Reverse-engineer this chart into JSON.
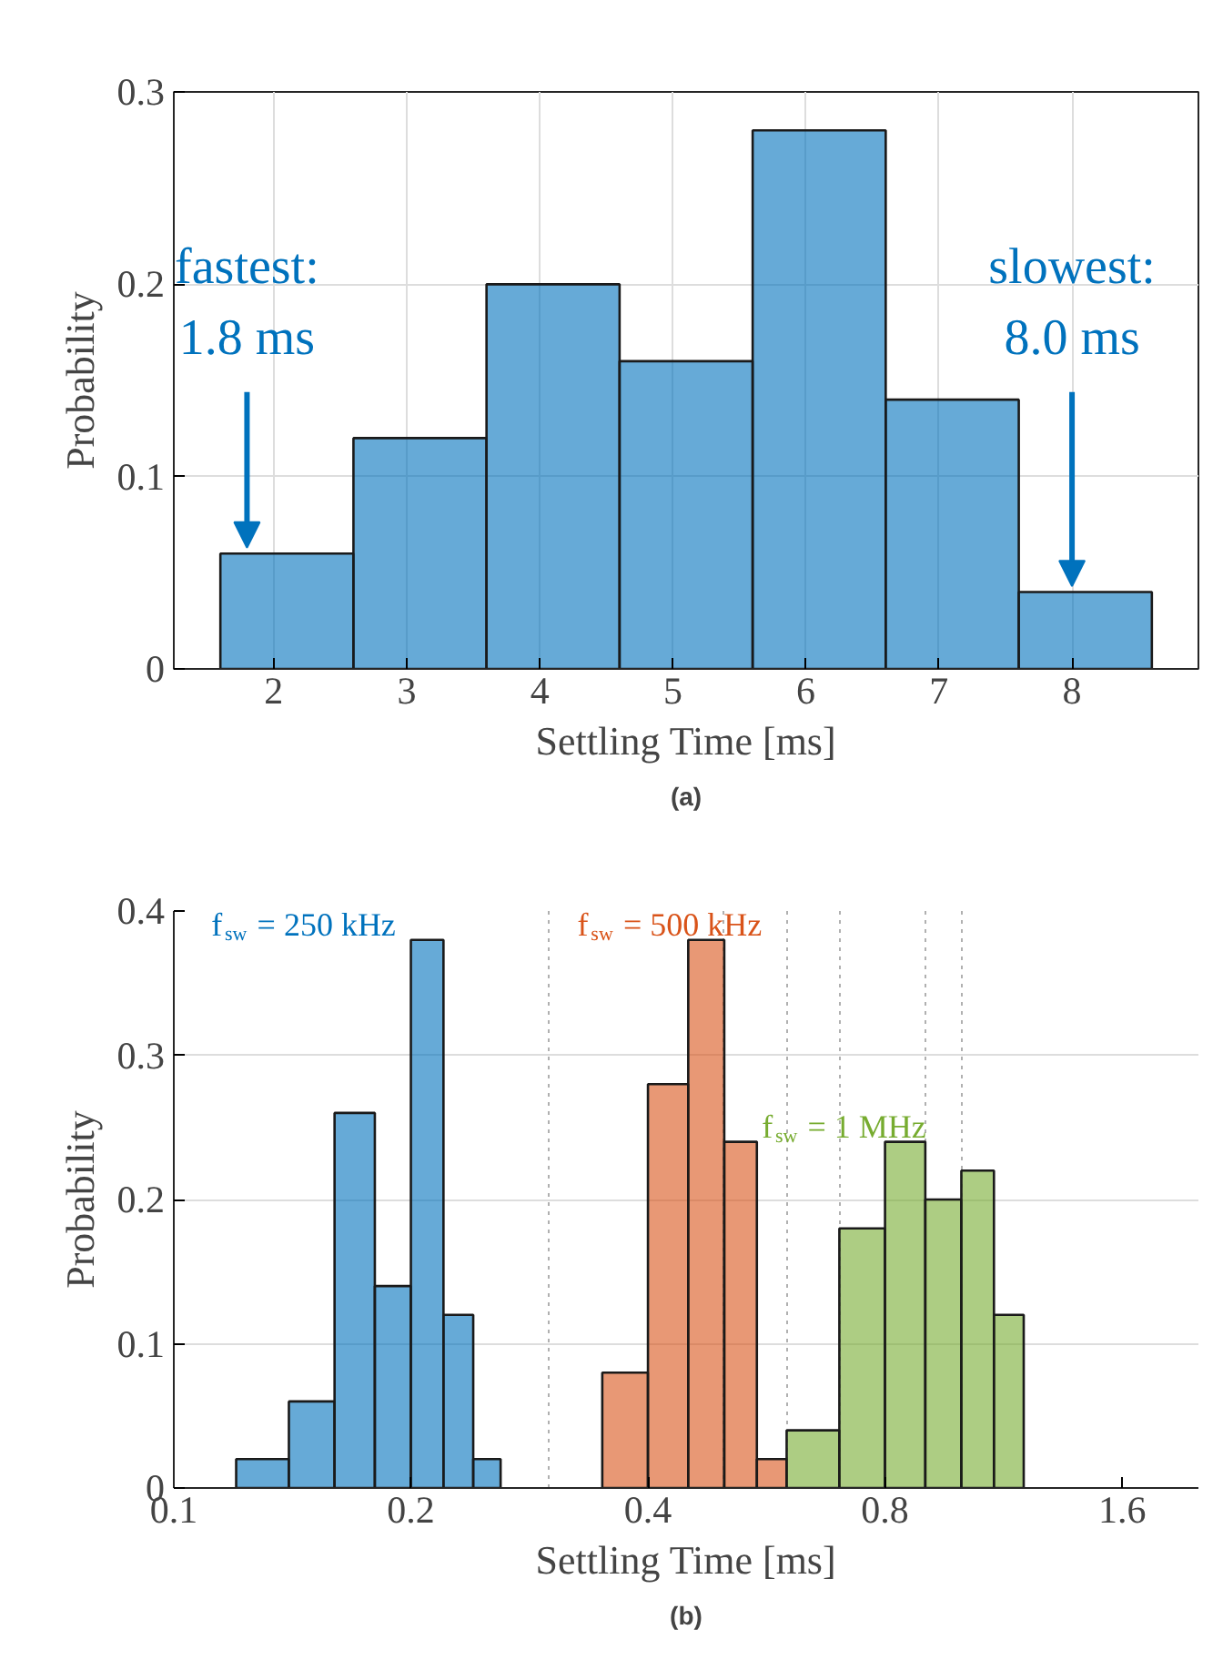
{
  "chart_data": [
    {
      "type": "histogram",
      "title": "(a)",
      "xlabel": "Settling Time [ms]",
      "ylabel": "Probability",
      "color": "#0072bd",
      "bins": [
        1.6,
        2.6,
        3.6,
        4.6,
        5.6,
        6.6,
        7.6,
        8.6
      ],
      "values": [
        0.06,
        0.12,
        0.2,
        0.16,
        0.28,
        0.14,
        0.04
      ],
      "xlim": [
        1.25,
        8.95
      ],
      "ylim": [
        0,
        0.3
      ],
      "xticks": [
        2,
        3,
        4,
        5,
        6,
        7,
        8
      ],
      "yticks": [
        0,
        0.1,
        0.2,
        0.3
      ],
      "grid": true,
      "annotations": [
        {
          "text": "fastest:\n1.8 ms",
          "x": 1.8,
          "y": 0.06
        },
        {
          "text": "slowest:\n8.0 ms",
          "x": 8.0,
          "y": 0.04
        }
      ]
    },
    {
      "type": "histogram",
      "title": "(b)",
      "xlabel": "Settling Time [ms]",
      "ylabel": "Probability",
      "log": "x",
      "xlim": [
        0.1,
        2.0
      ],
      "ylim": [
        0,
        0.4
      ],
      "xticks": [
        0.1,
        0.2,
        0.4,
        0.8,
        1.6
      ],
      "yticks": [
        0,
        0.1,
        0.2,
        0.3,
        0.4
      ],
      "grid": "y",
      "bins": [
        0.12,
        0.14,
        0.16,
        0.18,
        0.2,
        0.22,
        0.24,
        0.26,
        0.35,
        0.4,
        0.45,
        0.5,
        0.55,
        0.6,
        0.7,
        0.8,
        0.9,
        1.0,
        1.1,
        1.2
      ],
      "series": [
        {
          "name": "f$_{sw}$ = 250 kHz",
          "color": "#0072bd",
          "values": [
            0.02,
            0.06,
            0.26,
            0.14,
            0.38,
            0.12,
            0.02,
            null,
            null,
            null,
            null,
            null,
            null,
            null,
            null,
            null,
            null,
            null,
            null
          ]
        },
        {
          "name": "f$_{sw}$ = 500 kHz",
          "color": "#d95319",
          "values": [
            null,
            null,
            null,
            null,
            null,
            null,
            null,
            null,
            0.08,
            0.28,
            0.38,
            0.24,
            0.02,
            null,
            null,
            null,
            null,
            null,
            null
          ]
        },
        {
          "name": "f$_{sw}$ = 1 MHz",
          "color": "#77ac30",
          "values": [
            null,
            null,
            null,
            null,
            null,
            null,
            null,
            null,
            null,
            null,
            null,
            null,
            null,
            0.04,
            0.18,
            0.24,
            0.2,
            0.22,
            0.12
          ]
        }
      ]
    }
  ]
}
